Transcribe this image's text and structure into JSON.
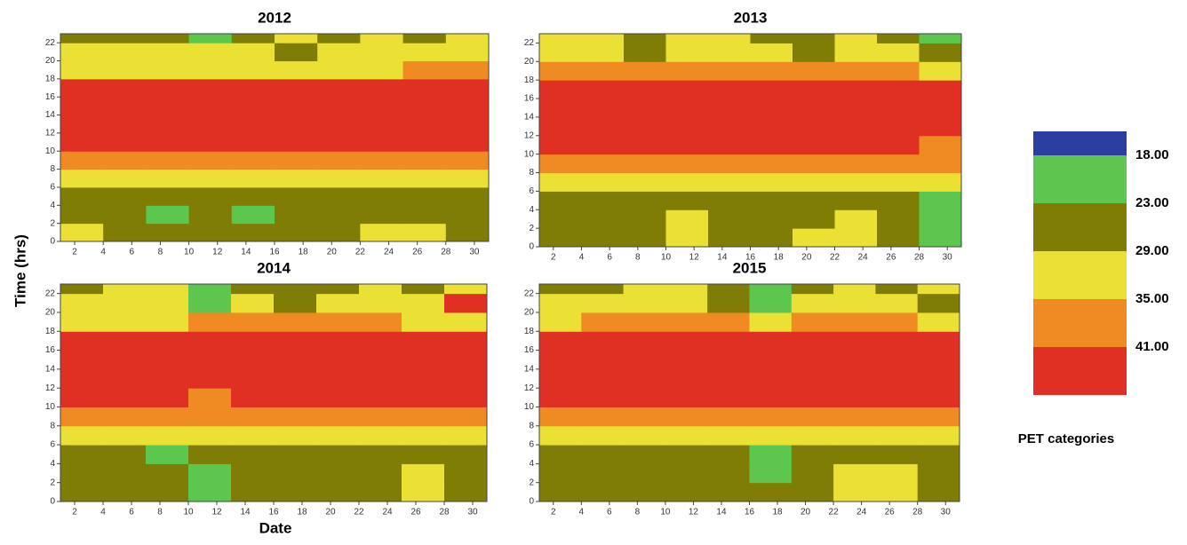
{
  "y_label": "Time (hrs)",
  "x_label": "Date",
  "legend": {
    "title": "PET categories",
    "colors": [
      "#2b3fa0",
      "#5cc64e",
      "#7f7d05",
      "#ebe134",
      "#f08a22",
      "#e03024"
    ],
    "levels": [
      {
        "value": 18,
        "label": "18.00"
      },
      {
        "value": 23,
        "label": "23.00"
      },
      {
        "value": 29,
        "label": "29.00"
      },
      {
        "value": 35,
        "label": "35.00"
      },
      {
        "value": 41,
        "label": "41.00"
      }
    ]
  },
  "chart_data": [
    {
      "type": "heatmap",
      "title": "2012",
      "x": [
        1,
        4,
        7,
        10,
        13,
        16,
        19,
        22,
        25,
        28
      ],
      "y": [
        0,
        2,
        4,
        6,
        8,
        10,
        12,
        14,
        16,
        18,
        20,
        22
      ],
      "z": [
        [
          31,
          26,
          26,
          26,
          26,
          26,
          26,
          31,
          31,
          26
        ],
        [
          26,
          26,
          21,
          26,
          21,
          26,
          26,
          26,
          26,
          26
        ],
        [
          26,
          26,
          26,
          26,
          26,
          26,
          26,
          26,
          26,
          26
        ],
        [
          32,
          32,
          32,
          32,
          32,
          32,
          32,
          32,
          32,
          32
        ],
        [
          38,
          38,
          38,
          38,
          38,
          38,
          38,
          38,
          38,
          38
        ],
        [
          45,
          45,
          45,
          45,
          45,
          45,
          45,
          45,
          45,
          45
        ],
        [
          45,
          45,
          45,
          45,
          45,
          45,
          45,
          45,
          45,
          45
        ],
        [
          45,
          45,
          45,
          45,
          45,
          45,
          45,
          45,
          45,
          45
        ],
        [
          45,
          45,
          45,
          45,
          45,
          45,
          45,
          45,
          45,
          45
        ],
        [
          33,
          33,
          33,
          33,
          33,
          33,
          33,
          33,
          37,
          37
        ],
        [
          31,
          31,
          31,
          31,
          31,
          26,
          31,
          31,
          31,
          31
        ],
        [
          26,
          26,
          26,
          21,
          26,
          31,
          26,
          31,
          26,
          31
        ]
      ],
      "xlim": [
        1,
        31
      ],
      "ylim": [
        0,
        23
      ],
      "xticks": [
        2,
        4,
        6,
        8,
        10,
        12,
        14,
        16,
        18,
        20,
        22,
        24,
        26,
        28,
        30
      ],
      "yticks": [
        0,
        2,
        4,
        6,
        8,
        10,
        12,
        14,
        16,
        18,
        20,
        22
      ]
    },
    {
      "type": "heatmap",
      "title": "2013",
      "x": [
        1,
        4,
        7,
        10,
        13,
        16,
        19,
        22,
        25,
        28
      ],
      "y": [
        0,
        2,
        4,
        6,
        8,
        10,
        12,
        14,
        16,
        18,
        20,
        22
      ],
      "z": [
        [
          26,
          26,
          26,
          31,
          26,
          26,
          31,
          31,
          26,
          21
        ],
        [
          26,
          26,
          26,
          31,
          26,
          26,
          26,
          31,
          26,
          21
        ],
        [
          26,
          26,
          26,
          26,
          26,
          26,
          26,
          26,
          26,
          21
        ],
        [
          32,
          32,
          32,
          32,
          32,
          32,
          32,
          32,
          32,
          32
        ],
        [
          38,
          38,
          38,
          38,
          38,
          38,
          38,
          38,
          38,
          38
        ],
        [
          45,
          45,
          45,
          45,
          45,
          45,
          45,
          45,
          45,
          38
        ],
        [
          45,
          45,
          45,
          45,
          45,
          45,
          45,
          45,
          45,
          45
        ],
        [
          45,
          45,
          45,
          45,
          45,
          45,
          45,
          45,
          45,
          45
        ],
        [
          45,
          45,
          45,
          45,
          45,
          45,
          45,
          45,
          45,
          45
        ],
        [
          37,
          37,
          37,
          37,
          37,
          37,
          37,
          37,
          37,
          33
        ],
        [
          31,
          31,
          26,
          31,
          31,
          31,
          26,
          31,
          31,
          26
        ],
        [
          31,
          31,
          26,
          31,
          31,
          26,
          26,
          31,
          26,
          21
        ]
      ],
      "xlim": [
        1,
        31
      ],
      "ylim": [
        0,
        23
      ],
      "xticks": [
        2,
        4,
        6,
        8,
        10,
        12,
        14,
        16,
        18,
        20,
        22,
        24,
        26,
        28,
        30
      ],
      "yticks": [
        0,
        2,
        4,
        6,
        8,
        10,
        12,
        14,
        16,
        18,
        20,
        22
      ]
    },
    {
      "type": "heatmap",
      "title": "2014",
      "x": [
        1,
        4,
        7,
        10,
        13,
        16,
        19,
        22,
        25,
        28
      ],
      "y": [
        0,
        2,
        4,
        6,
        8,
        10,
        12,
        14,
        16,
        18,
        20,
        22
      ],
      "z": [
        [
          26,
          26,
          26,
          21,
          26,
          26,
          26,
          26,
          31,
          26
        ],
        [
          26,
          26,
          26,
          21,
          26,
          26,
          26,
          26,
          31,
          26
        ],
        [
          26,
          26,
          21,
          26,
          26,
          26,
          26,
          26,
          26,
          26
        ],
        [
          32,
          32,
          32,
          32,
          32,
          32,
          32,
          32,
          32,
          32
        ],
        [
          38,
          38,
          38,
          38,
          38,
          38,
          38,
          38,
          38,
          38
        ],
        [
          45,
          45,
          45,
          38,
          45,
          45,
          45,
          45,
          45,
          45
        ],
        [
          45,
          45,
          45,
          45,
          45,
          45,
          45,
          45,
          45,
          45
        ],
        [
          45,
          45,
          45,
          45,
          45,
          45,
          45,
          45,
          45,
          45
        ],
        [
          45,
          45,
          45,
          45,
          45,
          45,
          45,
          45,
          45,
          45
        ],
        [
          33,
          33,
          33,
          37,
          37,
          37,
          37,
          37,
          33,
          33
        ],
        [
          31,
          31,
          31,
          21,
          31,
          26,
          31,
          31,
          31,
          43
        ],
        [
          26,
          31,
          31,
          21,
          26,
          26,
          26,
          31,
          26,
          31
        ]
      ],
      "xlim": [
        1,
        31
      ],
      "ylim": [
        0,
        23
      ],
      "xticks": [
        2,
        4,
        6,
        8,
        10,
        12,
        14,
        16,
        18,
        20,
        22,
        24,
        26,
        28,
        30
      ],
      "yticks": [
        0,
        2,
        4,
        6,
        8,
        10,
        12,
        14,
        16,
        18,
        20,
        22
      ]
    },
    {
      "type": "heatmap",
      "title": "2015",
      "x": [
        1,
        4,
        7,
        10,
        13,
        16,
        19,
        22,
        25,
        28
      ],
      "y": [
        0,
        2,
        4,
        6,
        8,
        10,
        12,
        14,
        16,
        18,
        20,
        22
      ],
      "z": [
        [
          26,
          26,
          26,
          26,
          26,
          26,
          26,
          31,
          31,
          26
        ],
        [
          26,
          26,
          26,
          26,
          26,
          21,
          26,
          31,
          31,
          26
        ],
        [
          26,
          26,
          26,
          26,
          26,
          21,
          26,
          26,
          26,
          26
        ],
        [
          32,
          32,
          32,
          32,
          32,
          32,
          32,
          32,
          32,
          32
        ],
        [
          38,
          38,
          38,
          38,
          38,
          38,
          38,
          38,
          38,
          38
        ],
        [
          45,
          45,
          45,
          45,
          45,
          45,
          45,
          45,
          45,
          45
        ],
        [
          45,
          45,
          45,
          45,
          45,
          45,
          45,
          45,
          45,
          45
        ],
        [
          45,
          45,
          45,
          45,
          45,
          45,
          45,
          45,
          45,
          45
        ],
        [
          45,
          45,
          45,
          45,
          45,
          45,
          45,
          45,
          45,
          45
        ],
        [
          33,
          37,
          37,
          37,
          37,
          33,
          37,
          37,
          37,
          33
        ],
        [
          31,
          31,
          31,
          31,
          26,
          21,
          31,
          31,
          31,
          26
        ],
        [
          26,
          26,
          31,
          31,
          26,
          21,
          26,
          31,
          26,
          31
        ]
      ],
      "xlim": [
        1,
        31
      ],
      "ylim": [
        0,
        23
      ],
      "xticks": [
        2,
        4,
        6,
        8,
        10,
        12,
        14,
        16,
        18,
        20,
        22,
        24,
        26,
        28,
        30
      ],
      "yticks": [
        0,
        2,
        4,
        6,
        8,
        10,
        12,
        14,
        16,
        18,
        20,
        22
      ]
    }
  ]
}
